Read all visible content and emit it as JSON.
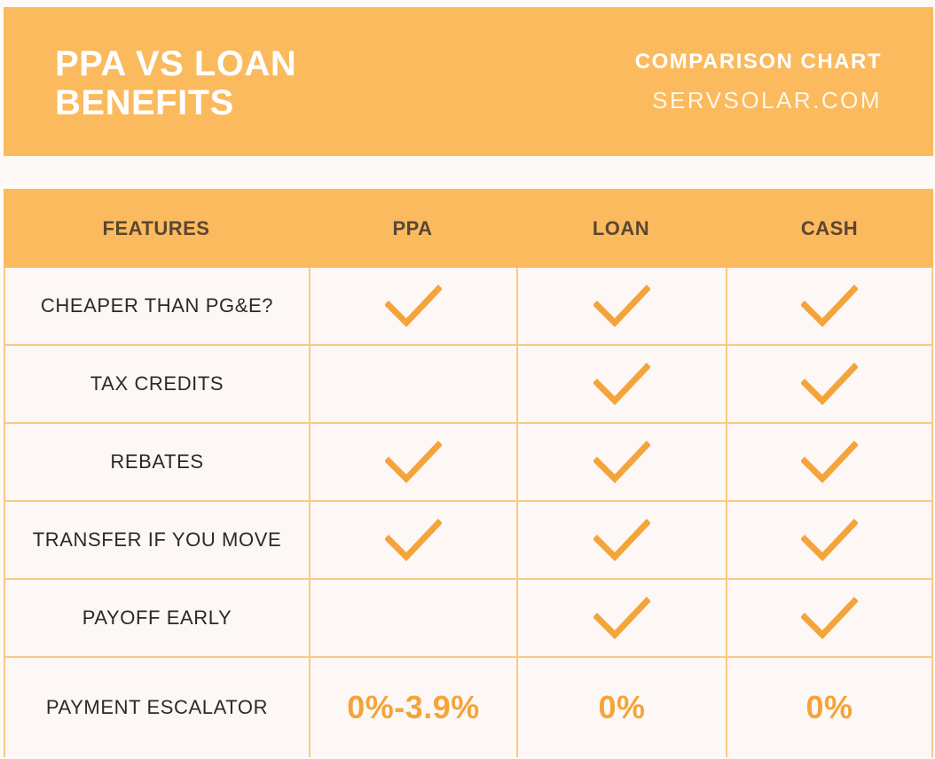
{
  "header": {
    "title_line1": "PPA VS LOAN",
    "title_line2": "BENEFITS",
    "subtitle": "COMPARISON CHART",
    "site": "SERVSOLAR.COM"
  },
  "colors": {
    "accent": "#fbba5e",
    "check": "#f4a43b",
    "border": "#f9c985"
  },
  "table": {
    "columns": [
      "FEATURES",
      "PPA",
      "LOAN",
      "CASH"
    ],
    "rows": [
      {
        "feature": "CHEAPER THAN PG&E?",
        "ppa": true,
        "loan": true,
        "cash": true
      },
      {
        "feature": "TAX CREDITS",
        "ppa": false,
        "loan": true,
        "cash": true
      },
      {
        "feature": "REBATES",
        "ppa": true,
        "loan": true,
        "cash": true
      },
      {
        "feature": "TRANSFER IF YOU MOVE",
        "ppa": true,
        "loan": true,
        "cash": true
      },
      {
        "feature": "PAYOFF EARLY",
        "ppa": false,
        "loan": true,
        "cash": true
      },
      {
        "feature": "PAYMENT ESCALATOR",
        "ppa": "0%-3.9%",
        "loan": "0%",
        "cash": "0%"
      }
    ]
  }
}
